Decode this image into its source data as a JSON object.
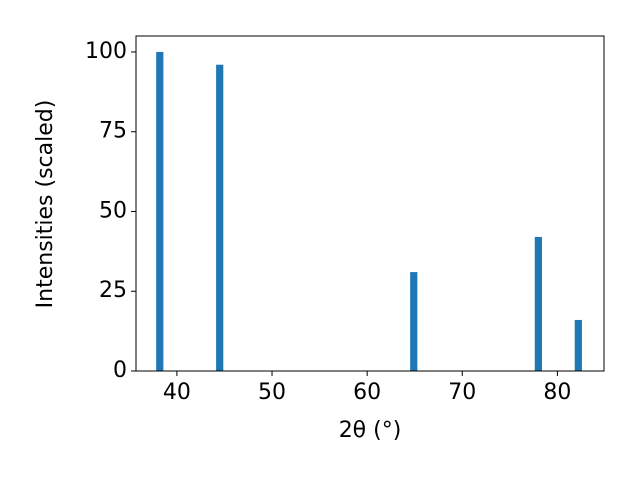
{
  "chart_data": {
    "type": "bar",
    "x": [
      38.2,
      44.5,
      64.9,
      78.0,
      82.2
    ],
    "values": [
      100,
      96,
      31,
      42,
      16
    ],
    "color": "#1f77b4",
    "xlabel": "2θ (°)",
    "ylabel": "Intensities (scaled)",
    "xlim": [
      35.7,
      84.9
    ],
    "xticks": [
      40,
      50,
      60,
      70,
      80
    ],
    "ylim": [
      0,
      105
    ],
    "yticks": [
      0,
      25,
      50,
      75,
      100
    ]
  }
}
